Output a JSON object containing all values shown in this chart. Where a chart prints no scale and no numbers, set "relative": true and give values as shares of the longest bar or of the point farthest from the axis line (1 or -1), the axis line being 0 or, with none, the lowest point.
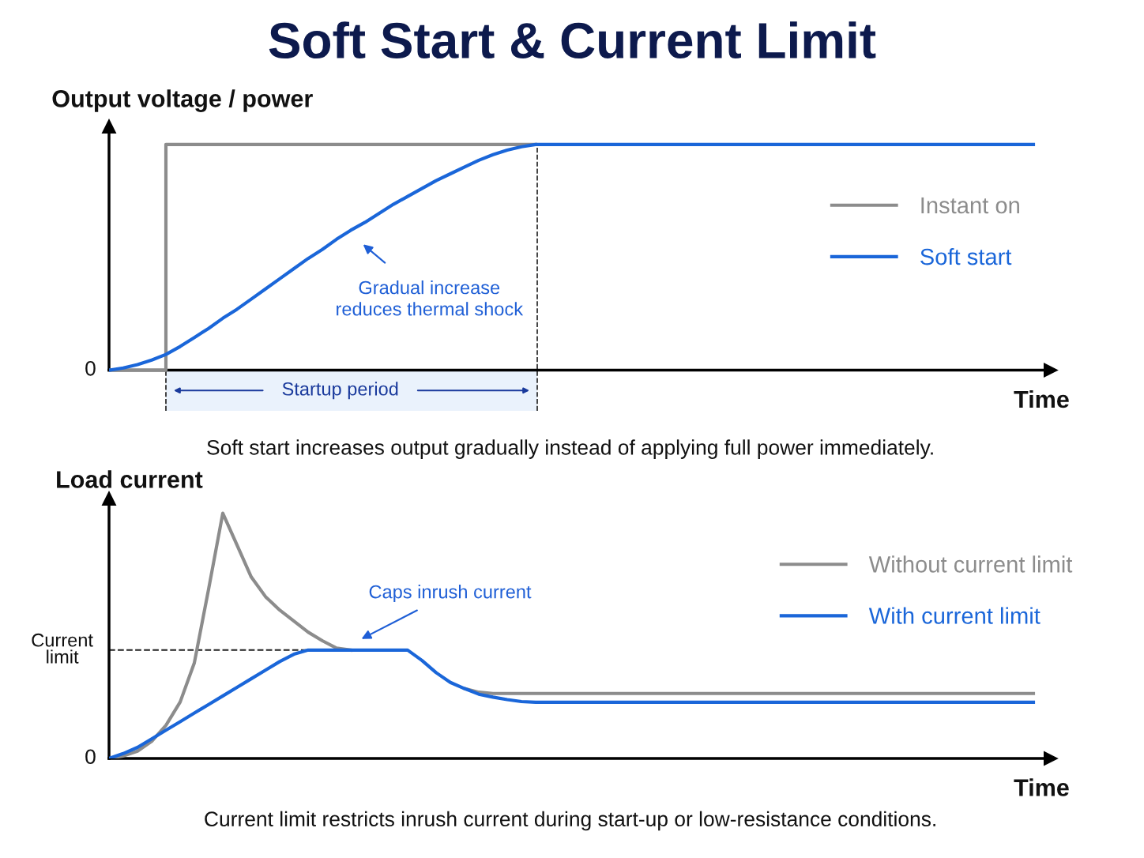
{
  "chart_data": [
    {
      "type": "line",
      "title": "Soft Start & Current Limit",
      "ylabel": "Output voltage / power",
      "xlabel": "Time",
      "relative": true,
      "categories": [
        null,
        null,
        null,
        null,
        null,
        null,
        null,
        null,
        null,
        null,
        null,
        null,
        null,
        null,
        null,
        null,
        null,
        null,
        null,
        null,
        null,
        null,
        null,
        null,
        null,
        null,
        null,
        null,
        null,
        null,
        null,
        null,
        null,
        null,
        null,
        null,
        null,
        null,
        null,
        null,
        null,
        null,
        null,
        null,
        null,
        null,
        null,
        null,
        null,
        null,
        null,
        null,
        null,
        null,
        null,
        null,
        null,
        null,
        null,
        null,
        null,
        null,
        null,
        null,
        null,
        null
      ],
      "series": [
        {
          "name": "Instant on",
          "color": "#8c8c8c",
          "type": "step",
          "values": [
            0,
            0,
            0,
            0,
            1,
            1,
            1,
            1,
            1,
            1,
            1,
            1,
            1,
            1,
            1,
            1,
            1,
            1,
            1,
            1,
            1,
            1,
            1,
            1,
            1,
            1,
            1,
            1,
            1,
            1,
            1,
            null,
            null,
            null,
            null,
            null,
            null,
            null,
            null,
            null,
            null,
            null,
            null,
            null,
            null,
            null,
            null,
            null,
            null,
            null,
            null,
            null,
            null,
            null,
            null,
            null,
            null,
            null,
            null,
            null,
            null,
            null,
            null,
            null,
            null,
            null
          ]
        },
        {
          "name": "Soft start",
          "color": "#1a66d9",
          "values": [
            0,
            0.01,
            0.025,
            0.045,
            0.07,
            0.105,
            0.145,
            0.185,
            0.23,
            0.27,
            0.315,
            0.36,
            0.405,
            0.45,
            0.495,
            0.535,
            0.58,
            0.62,
            0.655,
            0.695,
            0.735,
            0.77,
            0.805,
            0.84,
            0.87,
            0.9,
            0.93,
            0.955,
            0.975,
            0.99,
            1,
            1,
            1,
            1,
            1,
            1,
            1,
            1,
            1,
            1,
            1,
            1,
            1,
            1,
            1,
            1,
            1,
            1,
            1,
            1,
            1,
            1,
            1,
            1,
            1,
            1,
            1,
            1,
            1,
            1,
            1,
            1,
            1,
            1,
            1,
            1
          ]
        }
      ],
      "annotations": [
        "Gradual increase\nreduces thermal shock",
        "Soft start increases output gradually instead of applying full power immediately.",
        "0",
        "Startup period"
      ],
      "legend": "right",
      "marker": "none",
      "line_style": "solid"
    },
    {
      "type": "line",
      "ylabel": "Load current",
      "xlabel": "Time",
      "relative": true,
      "categories": [
        null,
        null,
        null,
        null,
        null,
        null,
        null,
        null,
        null,
        null,
        null,
        null,
        null,
        null,
        null,
        null,
        null,
        null,
        null,
        null,
        null,
        null,
        null,
        null,
        null,
        null,
        null,
        null,
        null,
        null,
        null,
        null,
        null,
        null,
        null,
        null,
        null,
        null,
        null,
        null,
        null,
        null,
        null,
        null,
        null,
        null,
        null,
        null,
        null,
        null,
        null,
        null,
        null,
        null,
        null,
        null,
        null,
        null,
        null,
        null,
        null,
        null,
        null,
        null,
        null,
        null
      ],
      "series": [
        {
          "name": "Without current limit",
          "color": "#8c8c8c",
          "values": [
            0,
            0.01,
            0.03,
            0.07,
            0.135,
            0.23,
            0.39,
            0.69,
            1,
            0.87,
            0.74,
            0.66,
            0.605,
            0.56,
            0.515,
            0.48,
            0.45,
            0.442,
            null,
            null,
            null,
            null,
            null,
            null,
            null,
            0.285,
            0.27,
            0.265,
            0.265,
            0.265,
            0.265,
            0.265,
            0.265,
            0.265,
            0.265,
            0.265,
            0.265,
            0.265,
            0.265,
            0.265,
            0.265,
            0.265,
            0.265,
            0.265,
            0.265,
            0.265,
            0.265,
            0.265,
            0.265,
            0.265,
            0.265,
            0.265,
            0.265,
            0.265,
            0.265,
            0.265,
            0.265,
            0.265,
            0.265,
            0.265,
            0.265,
            0.265,
            0.265,
            0.265,
            0.265,
            0.265
          ]
        },
        {
          "name": "With current limit",
          "color": "#1a66d9",
          "values": [
            0,
            0.02,
            0.045,
            0.08,
            0.115,
            0.15,
            0.185,
            0.22,
            0.255,
            0.29,
            0.325,
            0.36,
            0.395,
            0.425,
            0.442,
            0.442,
            0.442,
            0.442,
            0.442,
            0.442,
            0.442,
            0.442,
            0.4,
            0.35,
            0.31,
            0.285,
            0.262,
            0.25,
            0.24,
            0.232,
            0.229,
            0.229,
            0.229,
            0.229,
            0.229,
            0.229,
            0.229,
            0.229,
            0.229,
            0.229,
            0.229,
            0.229,
            0.229,
            0.229,
            0.229,
            0.229,
            0.229,
            0.229,
            0.229,
            0.229,
            0.229,
            0.229,
            0.229,
            0.229,
            0.229,
            0.229,
            0.229,
            0.229,
            0.229,
            0.229,
            0.229,
            0.229,
            0.229,
            0.229,
            0.229,
            0.229
          ]
        }
      ],
      "ref_lines": [
        {
          "axis": "y",
          "value": 0.442,
          "label": "Current limit",
          "color": "#222222",
          "line_style": "dashed"
        }
      ],
      "annotations": [
        "Caps inrush current",
        "Current limit restricts inrush current during start-up or low-resistance conditions.",
        "0"
      ],
      "legend": "right",
      "marker": "none",
      "line_style": "solid"
    }
  ]
}
